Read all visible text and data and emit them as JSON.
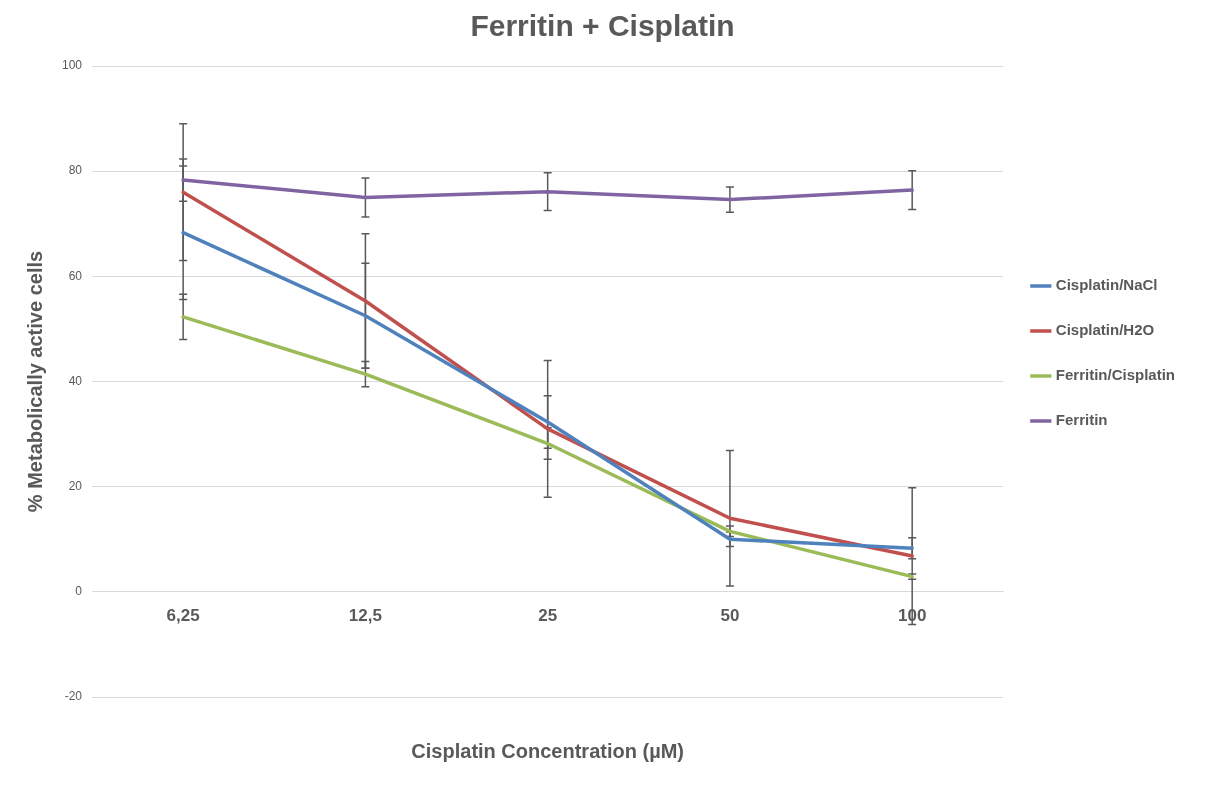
{
  "chart_data": {
    "type": "line",
    "title": "Ferritin + Cisplatin",
    "xlabel": "Cisplatin Concentration (µM)",
    "ylabel": "% Metabolically active cells",
    "categories": [
      "6,25",
      "12,5",
      "25",
      "50",
      "100"
    ],
    "series": [
      {
        "name": "Cisplatin/NaCl",
        "color": "#4f81bd",
        "values": [
          68.3,
          52.5,
          32.3,
          10,
          8.3
        ],
        "errors": [
          12.7,
          10,
          5,
          1.4,
          2
        ]
      },
      {
        "name": "Cisplatin/H2O",
        "color": "#c0504d",
        "values": [
          76,
          55.3,
          31,
          14,
          6.8
        ],
        "errors": [
          13,
          12.8,
          13,
          12.9,
          13
        ]
      },
      {
        "name": "Ferritin/Cisplatin",
        "color": "#9bbb59",
        "values": [
          52.3,
          41.4,
          28.2,
          11.5,
          2.9
        ],
        "errors": [
          4.3,
          2.4,
          3,
          1,
          0.5
        ]
      },
      {
        "name": "Ferritin",
        "color": "#8064a2",
        "values": [
          78.3,
          75,
          76.1,
          74.6,
          76.4
        ],
        "errors": [
          4,
          3.7,
          3.6,
          2.4,
          3.7
        ]
      }
    ],
    "ylim": [
      -20,
      100
    ],
    "yticks": [
      -20,
      0,
      20,
      40,
      60,
      80,
      100
    ],
    "grid": "y",
    "legend": "right",
    "marker": "none",
    "line_style": "solid"
  }
}
